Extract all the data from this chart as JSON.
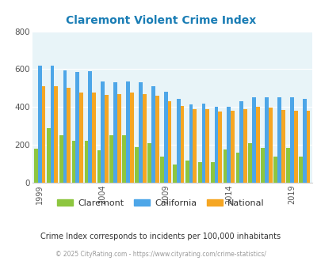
{
  "title": "Claremont Violent Crime Index",
  "subtitle": "Crime Index corresponds to incidents per 100,000 inhabitants",
  "copyright": "© 2025 CityRating.com - https://www.cityrating.com/crime-statistics/",
  "years": [
    1999,
    2000,
    2001,
    2002,
    2003,
    2004,
    2005,
    2006,
    2007,
    2008,
    2009,
    2010,
    2011,
    2012,
    2013,
    2014,
    2015,
    2016,
    2017,
    2018,
    2019,
    2020
  ],
  "claremont": [
    180,
    290,
    250,
    220,
    220,
    170,
    250,
    250,
    190,
    210,
    140,
    95,
    115,
    110,
    110,
    175,
    160,
    210,
    185,
    140,
    185,
    140
  ],
  "california": [
    620,
    620,
    595,
    585,
    590,
    535,
    530,
    535,
    530,
    510,
    480,
    445,
    415,
    420,
    400,
    400,
    430,
    450,
    450,
    450,
    450,
    445
  ],
  "national": [
    510,
    510,
    500,
    475,
    475,
    465,
    470,
    475,
    470,
    460,
    430,
    405,
    390,
    390,
    375,
    380,
    390,
    400,
    395,
    385,
    380,
    380
  ],
  "claremont_color": "#8dc63f",
  "california_color": "#4da6e8",
  "national_color": "#f5a623",
  "title_color": "#1a7db5",
  "plot_bg_color": "#e8f4f8",
  "ylim": [
    0,
    800
  ],
  "yticks": [
    0,
    200,
    400,
    600,
    800
  ],
  "xtick_years": [
    1999,
    2004,
    2009,
    2014,
    2019
  ],
  "legend_labels": [
    "Claremont",
    "California",
    "National"
  ]
}
